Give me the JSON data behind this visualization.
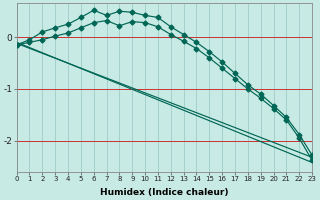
{
  "xlabel": "Humidex (Indice chaleur)",
  "bg_color": "#c8eae4",
  "line_color": "#006655",
  "grid_color": "#a0ccc8",
  "red_line_color": "#cc3333",
  "xlim": [
    0,
    23
  ],
  "ylim": [
    -2.6,
    0.65
  ],
  "yticks": [
    0,
    -1,
    -2
  ],
  "xticks": [
    0,
    1,
    2,
    3,
    4,
    5,
    6,
    7,
    8,
    9,
    10,
    11,
    12,
    13,
    14,
    15,
    16,
    17,
    18,
    19,
    20,
    21,
    22,
    23
  ],
  "series": [
    {
      "x": [
        0,
        1,
        2,
        3,
        4,
        5,
        6,
        7,
        8,
        9,
        10,
        11,
        12,
        13,
        14,
        15,
        16,
        17,
        18,
        19,
        20,
        21,
        22,
        23
      ],
      "y": [
        -0.15,
        -0.05,
        0.1,
        0.18,
        0.25,
        0.38,
        0.52,
        0.42,
        0.5,
        0.48,
        0.42,
        0.38,
        0.2,
        0.05,
        -0.1,
        -0.28,
        -0.48,
        -0.7,
        -0.92,
        -1.1,
        -1.32,
        -1.55,
        -1.88,
        -2.28
      ],
      "marker": "D",
      "markersize": 2.5
    },
    {
      "x": [
        0,
        1,
        2,
        3,
        4,
        5,
        6,
        7,
        8,
        9,
        10,
        11,
        12,
        13,
        14,
        15,
        16,
        17,
        18,
        19,
        20,
        21,
        22,
        23
      ],
      "y": [
        -0.15,
        -0.1,
        -0.05,
        0.02,
        0.08,
        0.18,
        0.28,
        0.32,
        0.22,
        0.3,
        0.28,
        0.2,
        0.05,
        -0.08,
        -0.22,
        -0.4,
        -0.6,
        -0.8,
        -1.0,
        -1.18,
        -1.38,
        -1.6,
        -1.95,
        -2.38
      ],
      "marker": "D",
      "markersize": 2.5
    },
    {
      "x": [
        0,
        23
      ],
      "y": [
        -0.12,
        -2.32
      ],
      "marker": null
    },
    {
      "x": [
        0,
        23
      ],
      "y": [
        -0.1,
        -2.42
      ],
      "marker": null
    }
  ]
}
